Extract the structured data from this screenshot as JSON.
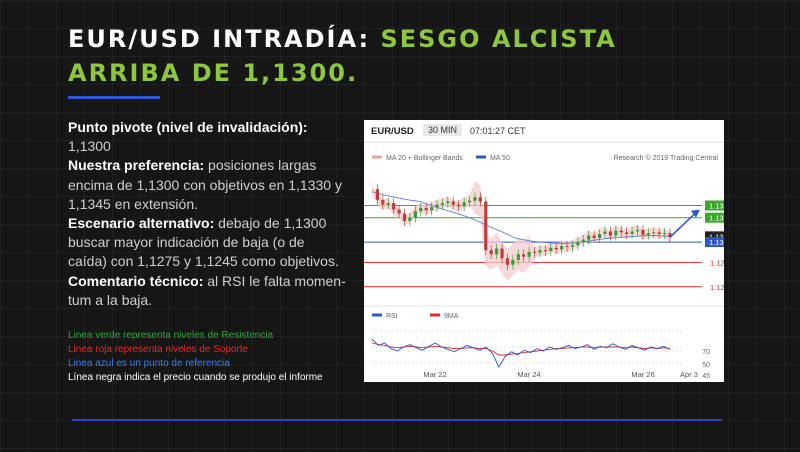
{
  "slide": {
    "title_white": "EUR/USD INTRADÍA: ",
    "title_green_1": "SESGO ALCISTA",
    "title_green_2": "ARRIBA DE 1,1300.",
    "paragraphs": [
      {
        "label": "Punto pivote (nivel de invalidación):",
        "text": " 1,1300"
      },
      {
        "label": "Nuestra preferencia:",
        "text": " posiciones largas encima de 1,1300 con objetivos en 1,1330 y 1,1345 en extensión."
      },
      {
        "label": "Escenario alternativo:",
        "text": " debajo de 1,1300 buscar mayor indicación de baja (o de caída) con 1,1275 y 1,1245 como objetivos."
      },
      {
        "label": "Comentario técnico:",
        "text": " al RSI le falta momen-tum a la baja."
      }
    ],
    "legend": [
      {
        "text": "Linea verde representa niveles de Resistencia",
        "color": "#2ea82e"
      },
      {
        "text": "Linea roja representa niveles de Soporte",
        "color": "#e8262c"
      },
      {
        "text": "Linea azul es un punto de referencia",
        "color": "#3d7cf0"
      },
      {
        "text": "Línea negra indica el precio cuando se produjo el informe",
        "color": "#ffffff"
      }
    ],
    "colors": {
      "accent_green": "#8dc63f",
      "accent_blue": "#2f56d8",
      "background": "#161616"
    }
  },
  "chart": {
    "symbol": "EUR/USD",
    "timeframe": "30 MIN",
    "time": "07:01:27 CET",
    "legend_ma20": "MA 20 + Bollinger Bands",
    "legend_ma50": "MA 50",
    "credit": "Research © 2019 Trading Central",
    "rsi_label": "RSI",
    "rsi_ma_label": "9MA",
    "rsi_ticks": [
      "70",
      "50",
      "45",
      "30"
    ],
    "x_labels": [
      "Mar 22",
      "Mar 24",
      "Mar 26",
      "Apr 3"
    ]
  },
  "chart_data": {
    "type": "candlestick",
    "title": "EUR/USD",
    "timeframe": "30 MIN",
    "price_range": [
      1.1225,
      1.1385
    ],
    "levels": [
      {
        "label": "1.1345",
        "value": 1.1345,
        "kind": "resistance",
        "color": "#3aa82a"
      },
      {
        "label": "1.1330",
        "value": 1.133,
        "kind": "resistance",
        "color": "#3aa82a"
      },
      {
        "label": "1.1307",
        "value": 1.1307,
        "kind": "price",
        "color": "#222222"
      },
      {
        "label": "1.1300",
        "value": 1.13,
        "kind": "pivot",
        "color": "#2c57cf"
      },
      {
        "label": "1.1275",
        "value": 1.1275,
        "kind": "support",
        "color": "#e8262c"
      },
      {
        "label": "1.1245",
        "value": 1.1245,
        "kind": "support",
        "color": "#e8262c"
      }
    ],
    "close_path": [
      1.1365,
      1.1352,
      1.1346,
      1.1348,
      1.134,
      1.1335,
      1.1326,
      1.133,
      1.1338,
      1.1342,
      1.1339,
      1.1343,
      1.1346,
      1.1348,
      1.135,
      1.1346,
      1.1344,
      1.1349,
      1.1351,
      1.1355,
      1.135,
      1.129,
      1.1285,
      1.1292,
      1.128,
      1.1272,
      1.1278,
      1.1285,
      1.1282,
      1.1288,
      1.1287,
      1.129,
      1.1289,
      1.1293,
      1.1291,
      1.1295,
      1.1294,
      1.1296,
      1.13,
      1.1303,
      1.1308,
      1.1305,
      1.131,
      1.1313,
      1.1308,
      1.1314,
      1.1312,
      1.131,
      1.1313,
      1.1315,
      1.1309,
      1.1311,
      1.1312,
      1.131,
      1.1311,
      1.1306
    ],
    "ma50_path": [
      1.1362,
      1.1358,
      1.1355,
      1.1352,
      1.135,
      1.1345,
      1.134,
      1.1336,
      1.1331,
      1.1325,
      1.1318,
      1.1312,
      1.1305,
      1.1302,
      1.13,
      1.1299,
      1.1298,
      1.1299,
      1.1301,
      1.1303,
      1.1305,
      1.1306,
      1.1307,
      1.1308,
      1.1308,
      1.1307
    ],
    "rsi_range": [
      20,
      80
    ],
    "rsi_ref_lines": [
      70,
      50,
      45,
      30
    ],
    "rsi_path": [
      60,
      52,
      55,
      48,
      45,
      50,
      53,
      49,
      46,
      51,
      55,
      50,
      47,
      44,
      48,
      52,
      49,
      46,
      50,
      42,
      25,
      38,
      44,
      40,
      46,
      43,
      48,
      45,
      50,
      47,
      49,
      52,
      48,
      50,
      53,
      47,
      51,
      49,
      54,
      50,
      47,
      52,
      49,
      46,
      50,
      48,
      51,
      47
    ],
    "rsi_ma_path": [
      55,
      53,
      52,
      50,
      49,
      50,
      51,
      50,
      49,
      50,
      51,
      50,
      49,
      48,
      48,
      49,
      49,
      48,
      48,
      45,
      40,
      40,
      41,
      42,
      43,
      44,
      45,
      46,
      47,
      48,
      48,
      49,
      49,
      50,
      50,
      49,
      50,
      50,
      50,
      50,
      49,
      50,
      49,
      48,
      49,
      48,
      49,
      48
    ],
    "x_labels": [
      "Mar 22",
      "Mar 24",
      "Mar 26",
      "Apr 3"
    ]
  }
}
